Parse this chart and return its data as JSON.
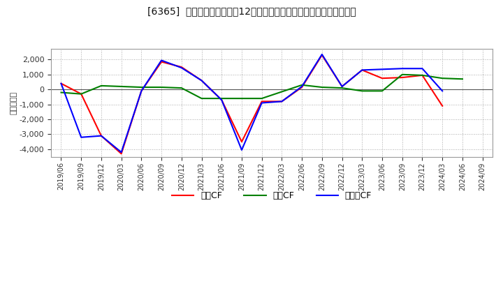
{
  "title": "[6365]  キャッシュフローの12か月移動合計の対前年同期増減額の推移",
  "ylabel": "（百万円）",
  "background_color": "#ffffff",
  "plot_bg_color": "#ffffff",
  "grid_color": "#aaaaaa",
  "x_labels": [
    "2019/06",
    "2019/09",
    "2019/12",
    "2020/03",
    "2020/06",
    "2020/09",
    "2020/12",
    "2021/03",
    "2021/06",
    "2021/09",
    "2021/12",
    "2022/03",
    "2022/06",
    "2022/09",
    "2022/12",
    "2023/03",
    "2023/06",
    "2023/09",
    "2023/12",
    "2024/03",
    "2024/06",
    "2024/09"
  ],
  "operating_cf": [
    400,
    -300,
    -3100,
    -4300,
    -100,
    1850,
    1500,
    600,
    -700,
    -3500,
    -800,
    -800,
    150,
    2300,
    200,
    1300,
    750,
    800,
    950,
    -1100,
    null,
    null
  ],
  "investing_cf": [
    -200,
    -300,
    250,
    200,
    150,
    150,
    100,
    -600,
    -600,
    -600,
    -600,
    -150,
    300,
    150,
    100,
    -100,
    -100,
    1000,
    950,
    750,
    700,
    null
  ],
  "free_cf": [
    400,
    -3200,
    -3100,
    -4200,
    -100,
    1950,
    1450,
    600,
    -700,
    -4050,
    -900,
    -800,
    200,
    2350,
    200,
    1300,
    1350,
    1400,
    1400,
    -100,
    null,
    null
  ],
  "operating_color": "#ff0000",
  "investing_color": "#008000",
  "free_color": "#0000ff",
  "ylim": [
    -4500,
    2700
  ],
  "yticks": [
    -4000,
    -3000,
    -2000,
    -1000,
    0,
    1000,
    2000
  ],
  "legend_labels": [
    "営業CF",
    "投資CF",
    "フリーCF"
  ]
}
